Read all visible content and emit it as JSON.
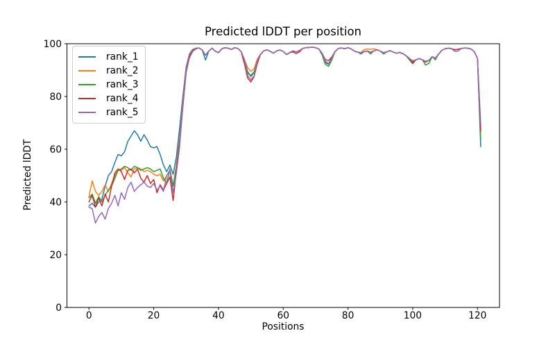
{
  "figure": {
    "background": "#ffffff"
  },
  "chart_data": {
    "type": "line",
    "title": "Predicted lDDT per position",
    "xlabel": "Positions",
    "ylabel": "Predicted lDDT",
    "x_start": 0,
    "n_points": 122,
    "xlim": [
      -6.8,
      126.8
    ],
    "ylim": [
      0,
      100
    ],
    "xticks": [
      0,
      20,
      40,
      60,
      80,
      100,
      120
    ],
    "yticks": [
      0,
      20,
      40,
      60,
      80,
      100
    ],
    "grid": false,
    "legend_position": "upper left",
    "series": [
      {
        "name": "rank_1",
        "color": "#1f77b4",
        "values": [
          38.5,
          39.5,
          38.0,
          40.0,
          41.0,
          46.0,
          50.0,
          51.5,
          55.0,
          58.0,
          57.5,
          59.0,
          63.0,
          65.0,
          67.0,
          65.5,
          63.0,
          65.5,
          63.5,
          61.0,
          60.5,
          61.0,
          58.0,
          54.0,
          51.5,
          54.0,
          50.5,
          57.0,
          68.0,
          80.0,
          91.0,
          96.0,
          97.8,
          98.3,
          98.4,
          97.6,
          93.8,
          97.2,
          98.3,
          97.2,
          96.6,
          98.0,
          98.5,
          98.3,
          97.8,
          98.5,
          98.2,
          97.0,
          94.0,
          88.8,
          88.0,
          89.3,
          93.5,
          96.0,
          97.3,
          97.7,
          97.1,
          96.4,
          97.3,
          97.6,
          97.1,
          95.9,
          96.6,
          97.3,
          96.9,
          97.4,
          98.2,
          98.5,
          98.6,
          98.7,
          98.5,
          98.0,
          96.4,
          92.8,
          92.2,
          94.6,
          97.0,
          98.2,
          98.4,
          98.1,
          98.5,
          98.0,
          97.2,
          96.8,
          96.6,
          97.0,
          97.2,
          96.8,
          97.3,
          97.7,
          97.2,
          96.6,
          96.9,
          97.4,
          96.8,
          96.4,
          96.7,
          96.2,
          95.4,
          94.4,
          93.2,
          93.9,
          94.4,
          93.9,
          93.3,
          93.7,
          95.1,
          94.5,
          96.1,
          97.5,
          98.1,
          98.3,
          98.1,
          97.7,
          97.9,
          98.2,
          98.4,
          98.3,
          98.0,
          97.0,
          94.5,
          61.0
        ]
      },
      {
        "name": "rank_2",
        "color": "#ff7f0e",
        "values": [
          42.0,
          48.0,
          44.0,
          42.5,
          44.0,
          46.5,
          44.0,
          47.0,
          50.0,
          52.5,
          52.0,
          53.0,
          51.0,
          49.5,
          52.5,
          53.0,
          52.5,
          51.5,
          52.0,
          51.5,
          50.5,
          50.0,
          50.5,
          48.0,
          50.0,
          52.0,
          46.0,
          54.0,
          64.0,
          78.0,
          90.0,
          95.5,
          97.5,
          98.3,
          98.4,
          97.6,
          95.6,
          97.2,
          98.3,
          97.2,
          96.6,
          98.0,
          98.5,
          98.3,
          97.8,
          98.5,
          98.2,
          97.0,
          94.0,
          91.0,
          89.5,
          90.5,
          94.2,
          96.0,
          97.3,
          97.7,
          97.1,
          96.4,
          97.3,
          97.6,
          97.1,
          95.9,
          96.6,
          97.3,
          96.9,
          97.4,
          98.2,
          98.5,
          98.6,
          98.7,
          98.5,
          98.0,
          96.4,
          93.4,
          92.4,
          94.6,
          97.0,
          98.2,
          98.4,
          98.1,
          98.5,
          98.0,
          97.2,
          96.8,
          96.6,
          97.8,
          98.0,
          97.9,
          98.1,
          97.7,
          97.2,
          96.6,
          96.9,
          97.4,
          96.8,
          96.4,
          96.7,
          96.2,
          95.4,
          94.4,
          93.6,
          93.9,
          94.4,
          93.9,
          93.3,
          93.7,
          95.1,
          94.5,
          96.1,
          97.5,
          98.1,
          98.3,
          98.1,
          97.7,
          97.9,
          98.2,
          98.4,
          98.3,
          98.0,
          97.0,
          94.5,
          66.0
        ]
      },
      {
        "name": "rank_3",
        "color": "#2ca02c",
        "values": [
          41.5,
          43.0,
          39.5,
          42.0,
          40.0,
          42.5,
          44.5,
          46.0,
          49.0,
          52.0,
          52.5,
          53.5,
          53.0,
          52.0,
          53.5,
          53.0,
          52.0,
          52.5,
          53.0,
          52.5,
          51.5,
          52.0,
          52.5,
          49.0,
          47.0,
          52.5,
          46.0,
          53.0,
          63.0,
          77.0,
          89.5,
          95.0,
          97.3,
          98.2,
          98.4,
          97.6,
          95.6,
          97.2,
          98.3,
          97.2,
          96.6,
          98.0,
          98.5,
          98.3,
          97.8,
          98.5,
          98.2,
          97.0,
          94.0,
          89.5,
          87.5,
          89.0,
          93.5,
          96.0,
          97.3,
          97.7,
          97.1,
          96.4,
          97.3,
          97.6,
          97.1,
          95.9,
          96.6,
          97.3,
          96.9,
          97.4,
          98.2,
          98.5,
          98.6,
          98.7,
          98.5,
          98.0,
          95.8,
          92.2,
          91.4,
          93.8,
          97.0,
          98.2,
          98.4,
          98.1,
          98.5,
          98.0,
          97.2,
          96.8,
          96.1,
          97.0,
          97.2,
          96.1,
          97.3,
          97.7,
          97.2,
          96.1,
          96.9,
          97.4,
          96.8,
          96.4,
          96.7,
          96.2,
          95.4,
          93.8,
          92.4,
          93.9,
          94.4,
          93.9,
          91.9,
          92.6,
          95.1,
          93.9,
          96.1,
          97.5,
          98.1,
          98.3,
          98.1,
          97.7,
          97.9,
          98.2,
          98.4,
          98.3,
          98.0,
          97.0,
          94.5,
          63.5
        ]
      },
      {
        "name": "rank_4",
        "color": "#d62728",
        "values": [
          40.0,
          42.5,
          38.0,
          41.5,
          38.5,
          43.0,
          40.0,
          46.0,
          51.0,
          52.5,
          51.5,
          48.5,
          52.0,
          52.5,
          51.0,
          52.5,
          49.0,
          47.5,
          50.0,
          47.0,
          48.5,
          43.5,
          46.5,
          44.5,
          47.0,
          49.5,
          40.5,
          52.0,
          62.0,
          76.0,
          89.0,
          95.0,
          97.2,
          98.1,
          98.4,
          97.6,
          95.6,
          97.2,
          98.3,
          97.2,
          96.6,
          98.0,
          98.5,
          98.3,
          97.8,
          98.5,
          98.2,
          97.0,
          92.5,
          87.0,
          85.5,
          87.5,
          92.5,
          96.0,
          97.3,
          97.7,
          97.1,
          96.4,
          97.3,
          97.6,
          97.1,
          95.9,
          96.6,
          96.9,
          96.3,
          96.9,
          98.2,
          98.5,
          98.6,
          98.7,
          98.5,
          98.0,
          96.4,
          94.0,
          93.6,
          95.0,
          97.0,
          98.2,
          98.4,
          98.1,
          98.5,
          98.0,
          97.2,
          96.8,
          96.6,
          97.0,
          97.2,
          96.8,
          97.3,
          97.7,
          97.2,
          96.6,
          96.9,
          97.4,
          96.8,
          96.4,
          96.7,
          96.2,
          95.4,
          94.4,
          92.7,
          93.9,
          94.4,
          93.9,
          93.0,
          93.7,
          95.1,
          94.5,
          96.1,
          97.5,
          98.1,
          98.3,
          98.1,
          97.7,
          97.9,
          98.2,
          98.4,
          98.3,
          98.0,
          97.0,
          94.5,
          67.0
        ]
      },
      {
        "name": "rank_5",
        "color": "#9467bd",
        "values": [
          38.0,
          37.5,
          32.0,
          34.5,
          36.0,
          33.5,
          37.5,
          39.5,
          42.5,
          38.5,
          43.5,
          41.0,
          45.5,
          47.5,
          44.0,
          45.5,
          46.5,
          47.5,
          46.0,
          45.5,
          47.0,
          44.5,
          46.0,
          44.0,
          50.0,
          52.0,
          43.5,
          51.0,
          61.0,
          77.0,
          89.0,
          94.5,
          97.0,
          98.0,
          98.4,
          97.6,
          95.6,
          97.2,
          98.3,
          97.2,
          96.6,
          98.0,
          98.5,
          98.3,
          97.8,
          98.5,
          98.2,
          97.0,
          94.0,
          88.0,
          86.3,
          87.8,
          93.5,
          96.0,
          97.3,
          97.7,
          97.1,
          96.4,
          97.3,
          97.6,
          97.1,
          95.9,
          96.6,
          97.3,
          96.9,
          97.4,
          98.2,
          98.5,
          98.6,
          98.7,
          98.5,
          98.0,
          96.4,
          93.4,
          92.4,
          94.6,
          97.0,
          98.2,
          98.4,
          98.1,
          98.5,
          98.0,
          97.2,
          96.8,
          96.6,
          97.0,
          97.2,
          96.8,
          97.3,
          97.7,
          97.2,
          96.6,
          96.9,
          97.4,
          96.8,
          96.4,
          96.7,
          96.2,
          95.4,
          94.4,
          93.4,
          93.9,
          94.4,
          93.9,
          93.3,
          93.7,
          95.1,
          94.5,
          96.1,
          97.5,
          98.1,
          98.3,
          98.1,
          97.1,
          97.2,
          98.2,
          98.4,
          98.3,
          98.0,
          97.0,
          94.5,
          69.5
        ]
      }
    ]
  }
}
